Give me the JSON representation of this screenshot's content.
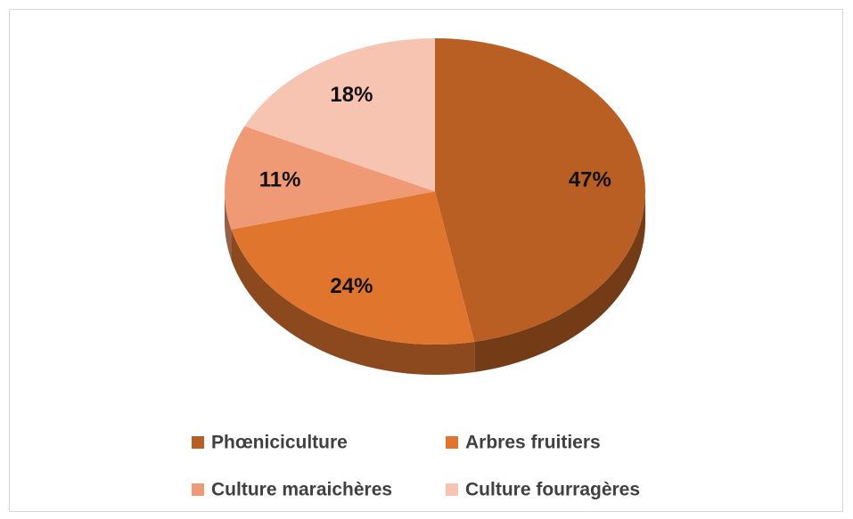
{
  "chart_data": {
    "type": "pie",
    "categories": [
      "Phœniciculture",
      "Arbres fruitiers",
      "Culture maraichères",
      "Culture fourragères"
    ],
    "values": [
      47,
      24,
      11,
      18
    ],
    "value_labels": [
      "47%",
      "24%",
      "11%",
      "18%"
    ],
    "colors": [
      "#b95f24",
      "#e0762e",
      "#f09a75",
      "#f8c4b2"
    ],
    "legend": "bottom"
  }
}
